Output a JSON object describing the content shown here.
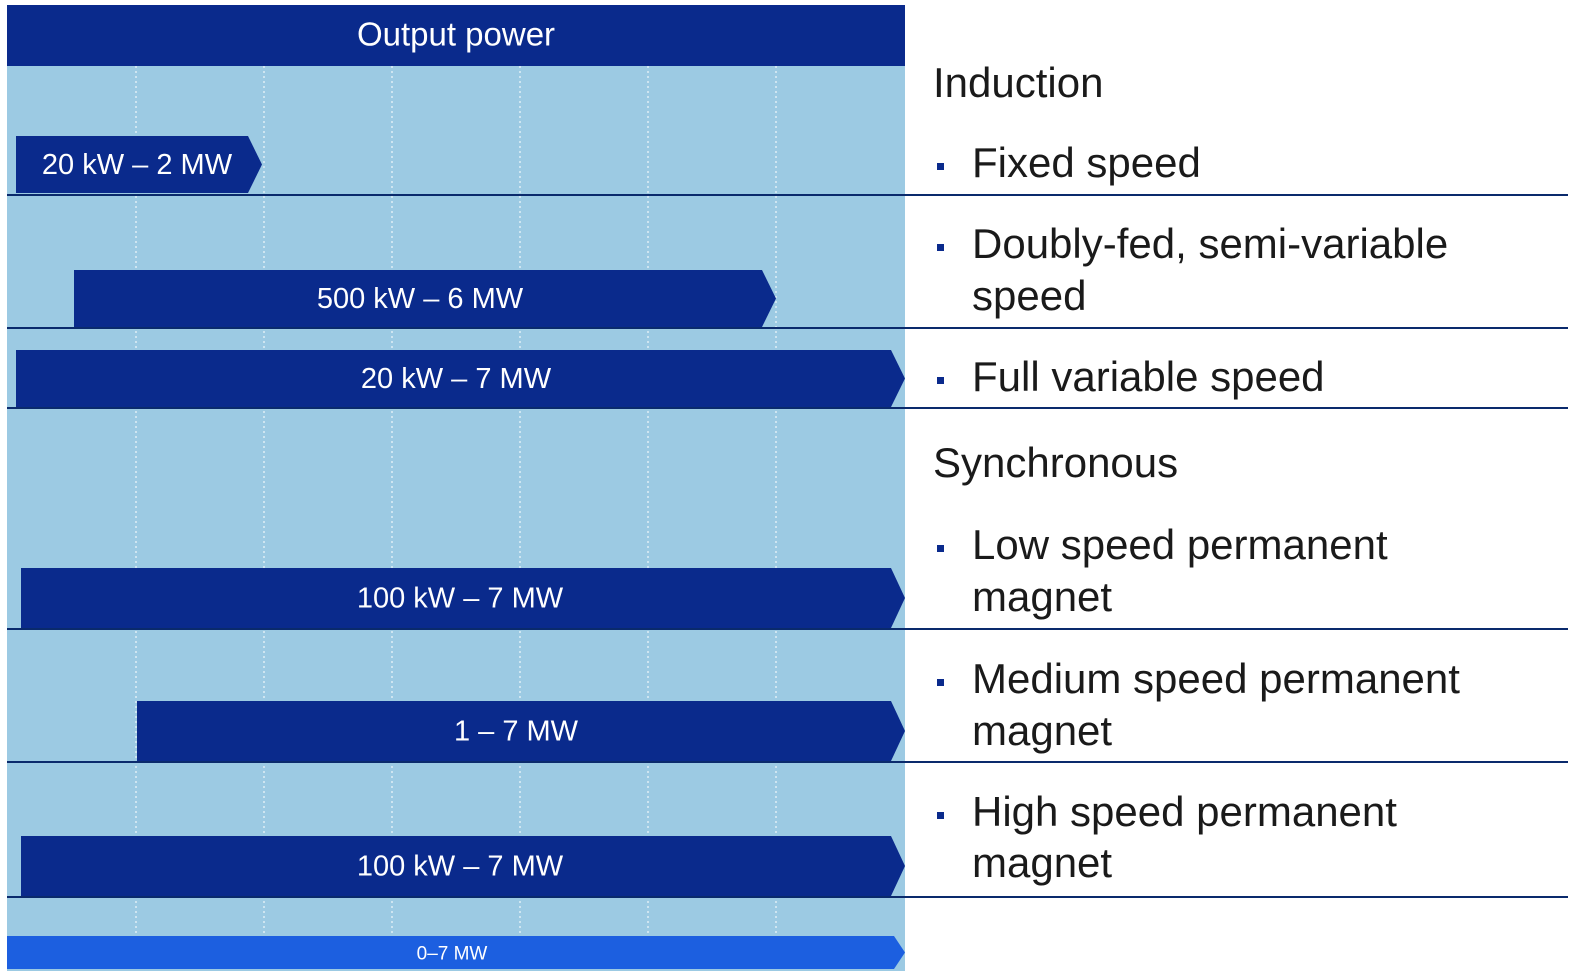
{
  "header": {
    "title": "Output power"
  },
  "bars": [
    {
      "label": "20 kW – 2 MW"
    },
    {
      "label": "500 kW – 6 MW"
    },
    {
      "label": "20 kW – 7 MW"
    },
    {
      "label": "100 kW – 7 MW"
    },
    {
      "label": "1 – 7 MW"
    },
    {
      "label": "100 kW – 7 MW"
    },
    {
      "label": "0–7 MW"
    }
  ],
  "sections": [
    {
      "title": "Induction",
      "items": [
        {
          "lines": [
            "Fixed speed"
          ]
        },
        {
          "lines": [
            "Doubly-fed, semi-variable",
            "speed"
          ]
        },
        {
          "lines": [
            "Full variable speed"
          ]
        }
      ]
    },
    {
      "title": "Synchronous",
      "items": [
        {
          "lines": [
            "Low speed permanent",
            "magnet"
          ]
        },
        {
          "lines": [
            "Medium speed permanent",
            "magnet"
          ]
        },
        {
          "lines": [
            "High speed permanent",
            "magnet"
          ]
        }
      ]
    }
  ]
}
